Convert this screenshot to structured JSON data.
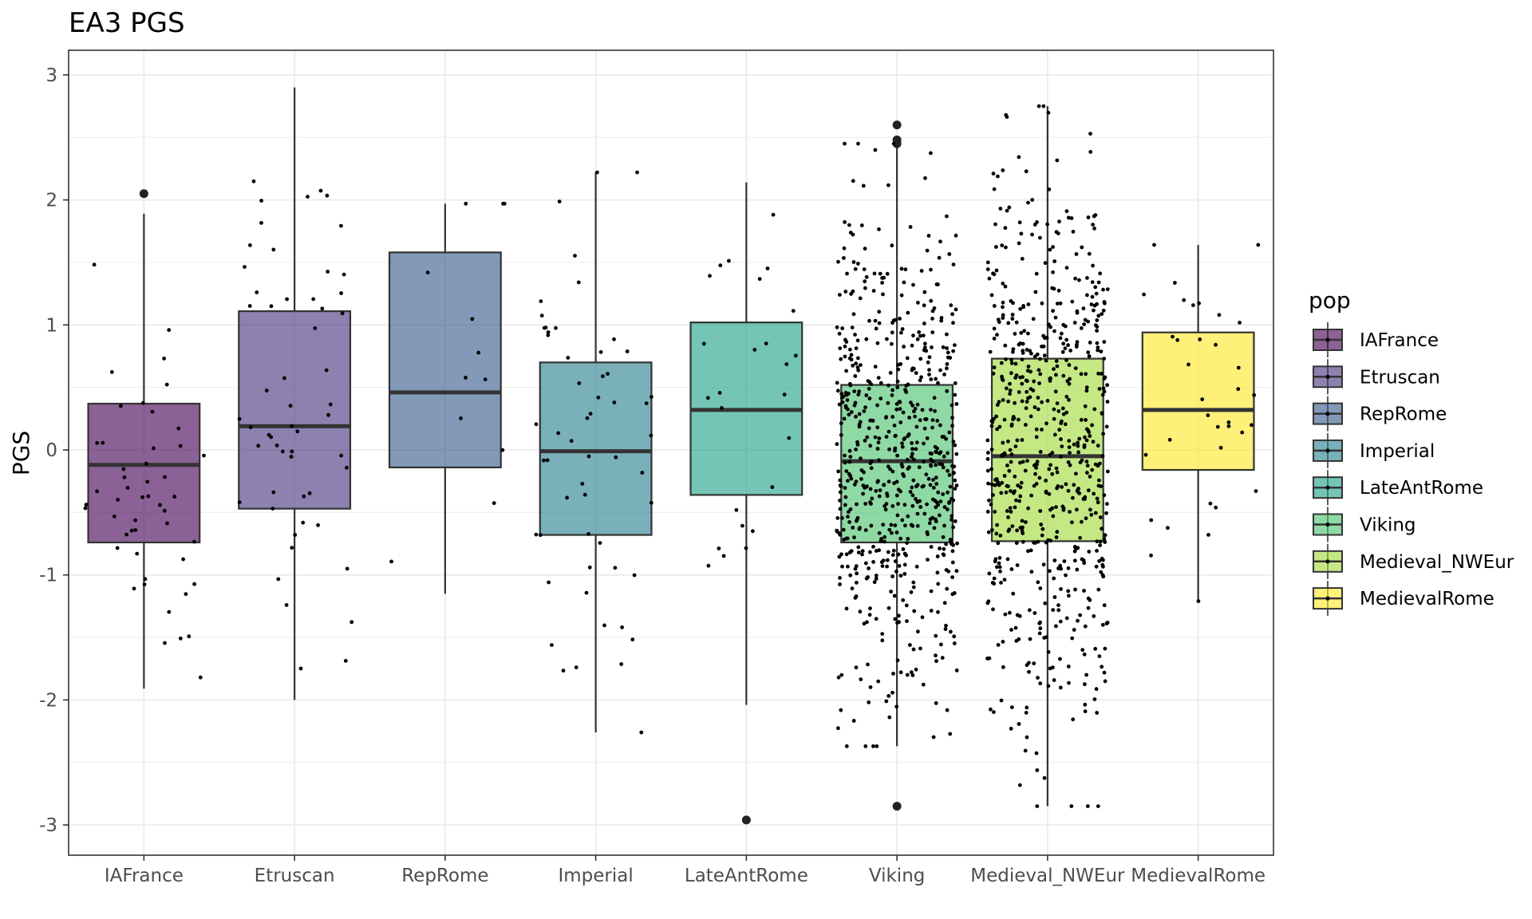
{
  "chart_data": {
    "type": "boxplot",
    "title": "EA3 PGS",
    "xlabel": "",
    "ylabel": "PGS",
    "ylim": [
      -3.2,
      3.2
    ],
    "yticks": [
      -3,
      -2,
      -1,
      0,
      1,
      2,
      3
    ],
    "ytick_labels": [
      "-3",
      "-2",
      "-1",
      "0",
      "1",
      "2",
      "3"
    ],
    "grid": true,
    "legend": {
      "title": "pop",
      "position": "right"
    },
    "categories": [
      "IAFrance",
      "Etruscan",
      "RepRome",
      "Imperial",
      "LateAntRome",
      "Viking",
      "Medieval_NWEur",
      "MedievalRome"
    ],
    "series": [
      {
        "name": "IAFrance",
        "color": "#440154",
        "q1": -0.74,
        "median": -0.12,
        "q3": 0.37,
        "whisker_low": -1.91,
        "whisker_high": 1.89,
        "outliers": [
          2.05
        ],
        "n_points": 50
      },
      {
        "name": "Etruscan",
        "color": "#46337E",
        "q1": -0.47,
        "median": 0.19,
        "q3": 1.11,
        "whisker_low": -2.0,
        "whisker_high": 2.9,
        "outliers": [],
        "n_points": 55
      },
      {
        "name": "RepRome",
        "color": "#365C8D",
        "q1": -0.14,
        "median": 0.46,
        "q3": 1.58,
        "whisker_low": -1.15,
        "whisker_high": 1.97,
        "outliers": [],
        "n_points": 12
      },
      {
        "name": "Imperial",
        "color": "#277F8E",
        "q1": -0.68,
        "median": -0.01,
        "q3": 0.7,
        "whisker_low": -2.26,
        "whisker_high": 2.22,
        "outliers": [],
        "n_points": 55
      },
      {
        "name": "LateAntRome",
        "color": "#1FA187",
        "q1": -0.36,
        "median": 0.32,
        "q3": 1.02,
        "whisker_low": -2.04,
        "whisker_high": 2.14,
        "outliers": [
          -2.96
        ],
        "n_points": 25
      },
      {
        "name": "Viking",
        "color": "#4AC16D",
        "q1": -0.74,
        "median": -0.09,
        "q3": 0.52,
        "whisker_low": -2.37,
        "whisker_high": 2.45,
        "outliers": [
          2.6,
          2.48,
          2.45,
          -2.85
        ],
        "n_points": 650
      },
      {
        "name": "Medieval_NWEur",
        "color": "#A0DA39",
        "q1": -0.73,
        "median": -0.05,
        "q3": 0.73,
        "whisker_low": -2.85,
        "whisker_high": 2.75,
        "outliers": [],
        "n_points": 650
      },
      {
        "name": "MedievalRome",
        "color": "#FDE725",
        "q1": -0.16,
        "median": 0.32,
        "q3": 0.94,
        "whisker_low": -1.21,
        "whisker_high": 1.64,
        "outliers": [],
        "n_points": 35
      }
    ]
  }
}
